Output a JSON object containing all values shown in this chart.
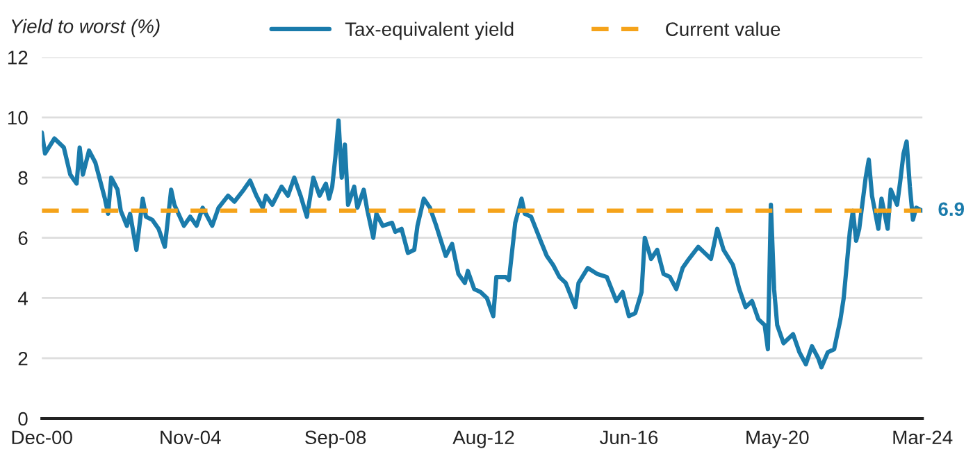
{
  "chart_data": {
    "type": "line",
    "ylabel": "Yield to worst (%)",
    "x": [
      "2000-12",
      "2001-01",
      "2001-04",
      "2001-07",
      "2001-09",
      "2001-11",
      "2001-12",
      "2002-01",
      "2002-03",
      "2002-05",
      "2002-06",
      "2002-08",
      "2002-09",
      "2002-10",
      "2002-12",
      "2003-01",
      "2003-03",
      "2003-04",
      "2003-06",
      "2003-08",
      "2003-09",
      "2003-11",
      "2004-01",
      "2004-03",
      "2004-05",
      "2004-06",
      "2004-09",
      "2004-11",
      "2005-01",
      "2005-03",
      "2005-06",
      "2005-08",
      "2005-11",
      "2006-01",
      "2006-04",
      "2006-06",
      "2006-08",
      "2006-10",
      "2006-11",
      "2007-01",
      "2007-04",
      "2007-06",
      "2007-08",
      "2007-10",
      "2007-12",
      "2008-02",
      "2008-04",
      "2008-06",
      "2008-07",
      "2008-08",
      "2008-09",
      "2008-10",
      "2008-11",
      "2008-12",
      "2009-01",
      "2009-03",
      "2009-04",
      "2009-06",
      "2009-07",
      "2009-09",
      "2009-10",
      "2009-12",
      "2010-03",
      "2010-04",
      "2010-06",
      "2010-08",
      "2010-10",
      "2010-11",
      "2011-01",
      "2011-03",
      "2011-05",
      "2011-08",
      "2011-10",
      "2011-12",
      "2012-02",
      "2012-03",
      "2012-05",
      "2012-07",
      "2012-09",
      "2012-11",
      "2012-12",
      "2013-03",
      "2013-04",
      "2013-06",
      "2013-08",
      "2013-09",
      "2013-11",
      "2014-02",
      "2014-04",
      "2014-06",
      "2014-08",
      "2014-10",
      "2015-01",
      "2015-02",
      "2015-05",
      "2015-08",
      "2015-11",
      "2016-02",
      "2016-04",
      "2016-06",
      "2016-08",
      "2016-10",
      "2016-11",
      "2017-01",
      "2017-03",
      "2017-05",
      "2017-07",
      "2017-09",
      "2017-11",
      "2018-01",
      "2018-04",
      "2018-06",
      "2018-08",
      "2018-10",
      "2018-12",
      "2019-03",
      "2019-05",
      "2019-07",
      "2019-09",
      "2019-11",
      "2020-01",
      "2020-02",
      "2020-03",
      "2020-04",
      "2020-05",
      "2020-07",
      "2020-10",
      "2020-12",
      "2021-02",
      "2021-04",
      "2021-06",
      "2021-07",
      "2021-09",
      "2021-11",
      "2022-01",
      "2022-02",
      "2022-04",
      "2022-05",
      "2022-06",
      "2022-07",
      "2022-09",
      "2022-10",
      "2022-11",
      "2023-01",
      "2023-02",
      "2023-04",
      "2023-05",
      "2023-07",
      "2023-08",
      "2023-09",
      "2023-10",
      "2023-11",
      "2023-12",
      "2024-01",
      "2024-03"
    ],
    "series": [
      {
        "name": "Tax-equivalent yield",
        "color": "#1a7bab",
        "values": [
          9.5,
          8.8,
          9.3,
          9.0,
          8.1,
          7.8,
          9.0,
          8.1,
          8.9,
          8.5,
          8.1,
          7.3,
          6.8,
          8.0,
          7.6,
          6.9,
          6.4,
          6.8,
          5.6,
          7.3,
          6.7,
          6.6,
          6.3,
          5.7,
          7.6,
          7.1,
          6.4,
          6.7,
          6.4,
          7.0,
          6.4,
          7.0,
          7.4,
          7.2,
          7.6,
          7.9,
          7.4,
          7.0,
          7.4,
          7.1,
          7.7,
          7.4,
          8.0,
          7.4,
          6.7,
          8.0,
          7.4,
          7.8,
          7.3,
          7.7,
          8.7,
          9.9,
          8.0,
          9.1,
          7.1,
          7.7,
          7.0,
          7.6,
          7.0,
          6.0,
          6.8,
          6.4,
          6.5,
          6.2,
          6.3,
          5.5,
          5.6,
          6.4,
          7.3,
          7.0,
          6.4,
          5.4,
          5.8,
          4.8,
          4.5,
          4.9,
          4.3,
          4.2,
          4.0,
          3.4,
          4.7,
          4.7,
          4.6,
          6.5,
          7.3,
          6.8,
          6.7,
          5.9,
          5.4,
          5.1,
          4.7,
          4.5,
          3.7,
          4.5,
          5.0,
          4.8,
          4.7,
          3.9,
          4.2,
          3.4,
          3.5,
          4.2,
          6.0,
          5.3,
          5.6,
          4.8,
          4.7,
          4.3,
          5.0,
          5.3,
          5.7,
          5.5,
          5.3,
          6.3,
          5.6,
          5.1,
          4.3,
          3.7,
          3.9,
          3.3,
          3.1,
          2.3,
          7.1,
          4.3,
          3.1,
          2.5,
          2.8,
          2.2,
          1.8,
          2.4,
          2.0,
          1.7,
          2.2,
          2.3,
          3.3,
          4.0,
          6.2,
          6.9,
          5.9,
          6.3,
          8.0,
          8.6,
          7.4,
          6.3,
          7.3,
          6.3,
          7.6,
          7.1,
          7.9,
          8.8,
          9.2,
          7.7,
          6.6,
          7.0,
          6.9
        ]
      }
    ],
    "ref_lines": [
      {
        "axis": "y",
        "value": 6.9,
        "label": "Current value",
        "color": "#f5a31a",
        "line_style": "dashed"
      }
    ],
    "annotations": [
      {
        "text": "6.9",
        "x": "2024-03",
        "y": 6.9
      }
    ],
    "xlim": [
      "2000-12",
      "2024-03"
    ],
    "xticks": [
      {
        "value": "2000-12",
        "label": "Dec-00"
      },
      {
        "value": "2004-11",
        "label": "Nov-04"
      },
      {
        "value": "2008-09",
        "label": "Sep-08"
      },
      {
        "value": "2012-08",
        "label": "Aug-12"
      },
      {
        "value": "2016-06",
        "label": "Jun-16"
      },
      {
        "value": "2020-05",
        "label": "May-20"
      },
      {
        "value": "2024-03",
        "label": "Mar-24"
      }
    ],
    "ylim": [
      0,
      12
    ],
    "yticks": [
      0,
      2,
      4,
      6,
      8,
      10,
      12
    ],
    "grid": "y",
    "legend": "top",
    "line_style": "solid",
    "marker": "none"
  }
}
